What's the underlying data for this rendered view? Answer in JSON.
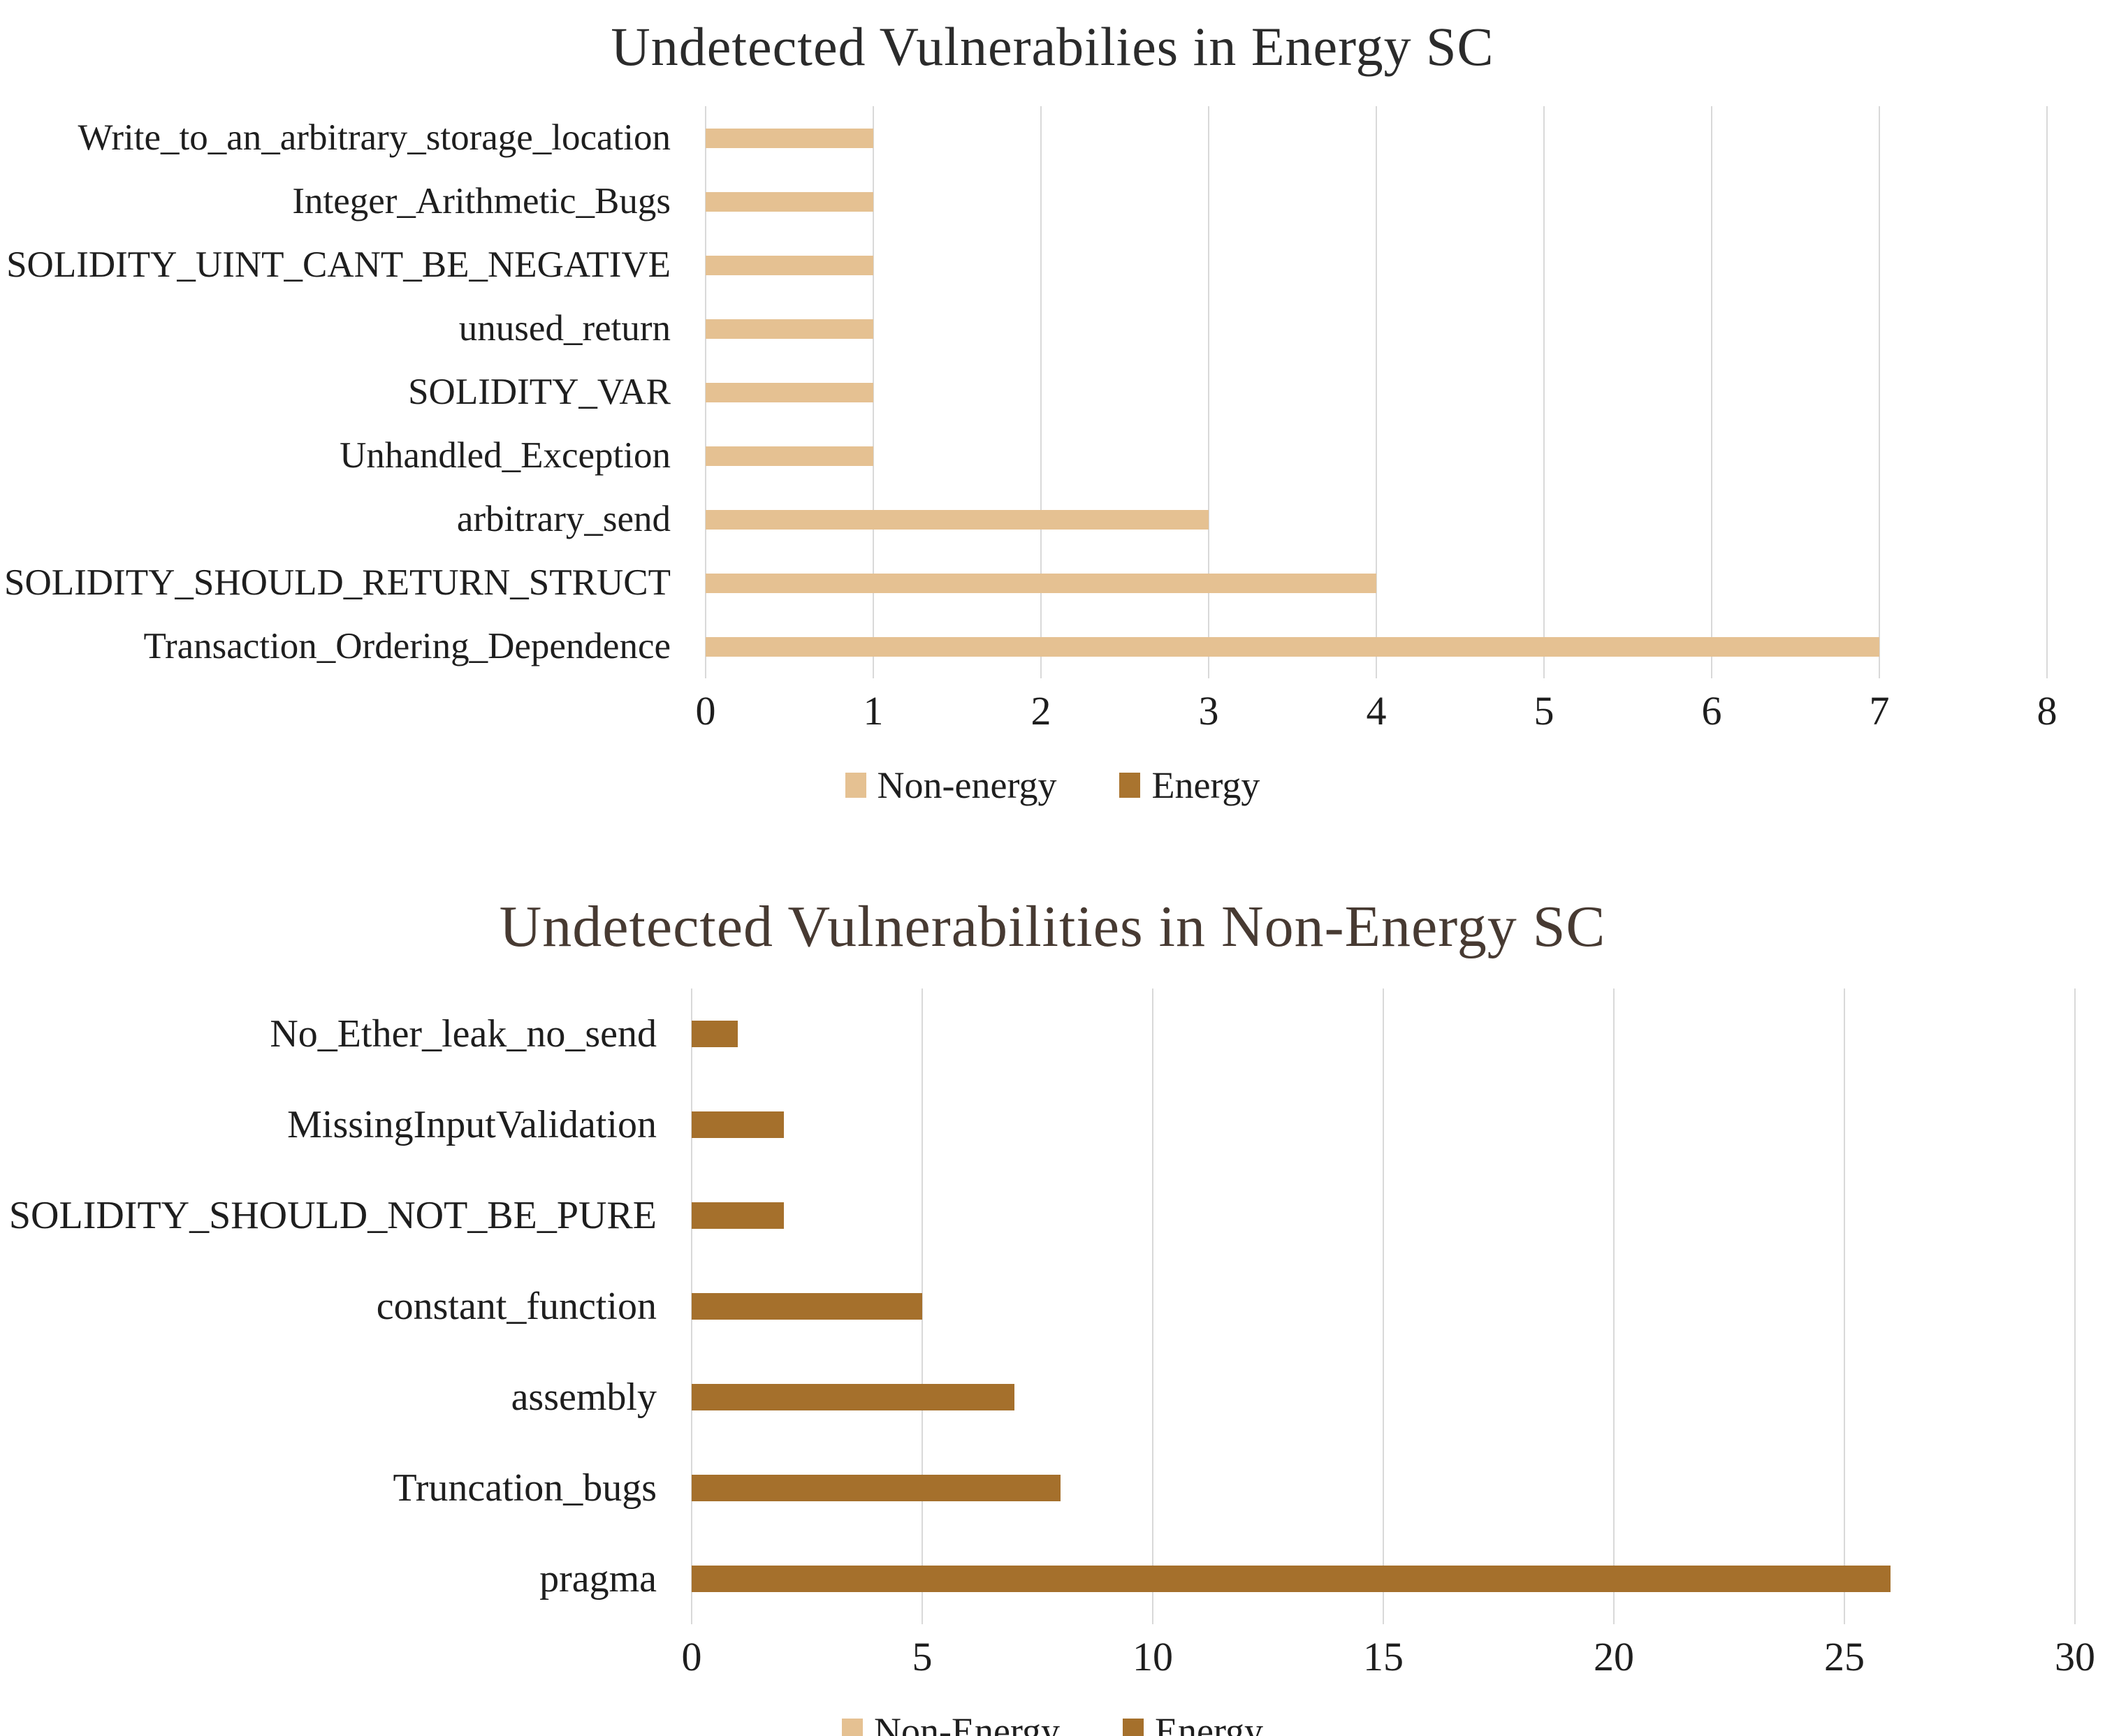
{
  "chart_data": [
    {
      "type": "bar",
      "orientation": "horizontal",
      "title": "Undetected Vulnerabilies in Energy SC",
      "title_color": "#2b2b2b",
      "bar_color": "#e5c192",
      "gridline_color": "#d9d9d9",
      "grid": true,
      "xlim": [
        0,
        8
      ],
      "xticks": [
        0,
        1,
        2,
        3,
        4,
        5,
        6,
        7,
        8
      ],
      "categories": [
        "Write_to_an_arbitrary_storage_location",
        "Integer_Arithmetic_Bugs",
        "SOLIDITY_UINT_CANT_BE_NEGATIVE",
        "unused_return",
        "SOLIDITY_VAR",
        "Unhandled_Exception",
        "arbitrary_send",
        "SOLIDITY_SHOULD_RETURN_STRUCT",
        "Transaction_Ordering_Dependence"
      ],
      "values": [
        1,
        1,
        1,
        1,
        1,
        1,
        3,
        4,
        7
      ],
      "legend_position": "bottom",
      "legend": [
        {
          "label": "Non-energy",
          "color": "#e5c192"
        },
        {
          "label": "Energy",
          "color": "#a9742f"
        }
      ]
    },
    {
      "type": "bar",
      "orientation": "horizontal",
      "title": "Undetected Vulnerabilities in Non-Energy SC",
      "title_color": "#473a32",
      "bar_color": "#a5702c",
      "gridline_color": "#d9d9d9",
      "grid": true,
      "xlim": [
        0,
        30
      ],
      "xticks": [
        0,
        5,
        10,
        15,
        20,
        25,
        30
      ],
      "categories": [
        "No_Ether_leak_no_send",
        "MissingInputValidation",
        "SOLIDITY_SHOULD_NOT_BE_PURE",
        "constant_function",
        "assembly",
        "Truncation_bugs",
        "pragma"
      ],
      "values": [
        1,
        2,
        2,
        5,
        7,
        8,
        26
      ],
      "legend_position": "bottom",
      "legend": [
        {
          "label": "Non-Energy",
          "color": "#e5c192"
        },
        {
          "label": "Energy",
          "color": "#a5702c"
        }
      ]
    }
  ]
}
